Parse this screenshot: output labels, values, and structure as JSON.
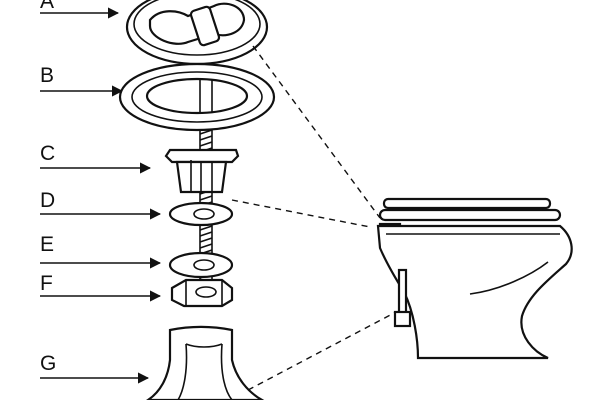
{
  "labels": [
    "A",
    "B",
    "C",
    "D",
    "E",
    "F",
    "G"
  ]
}
